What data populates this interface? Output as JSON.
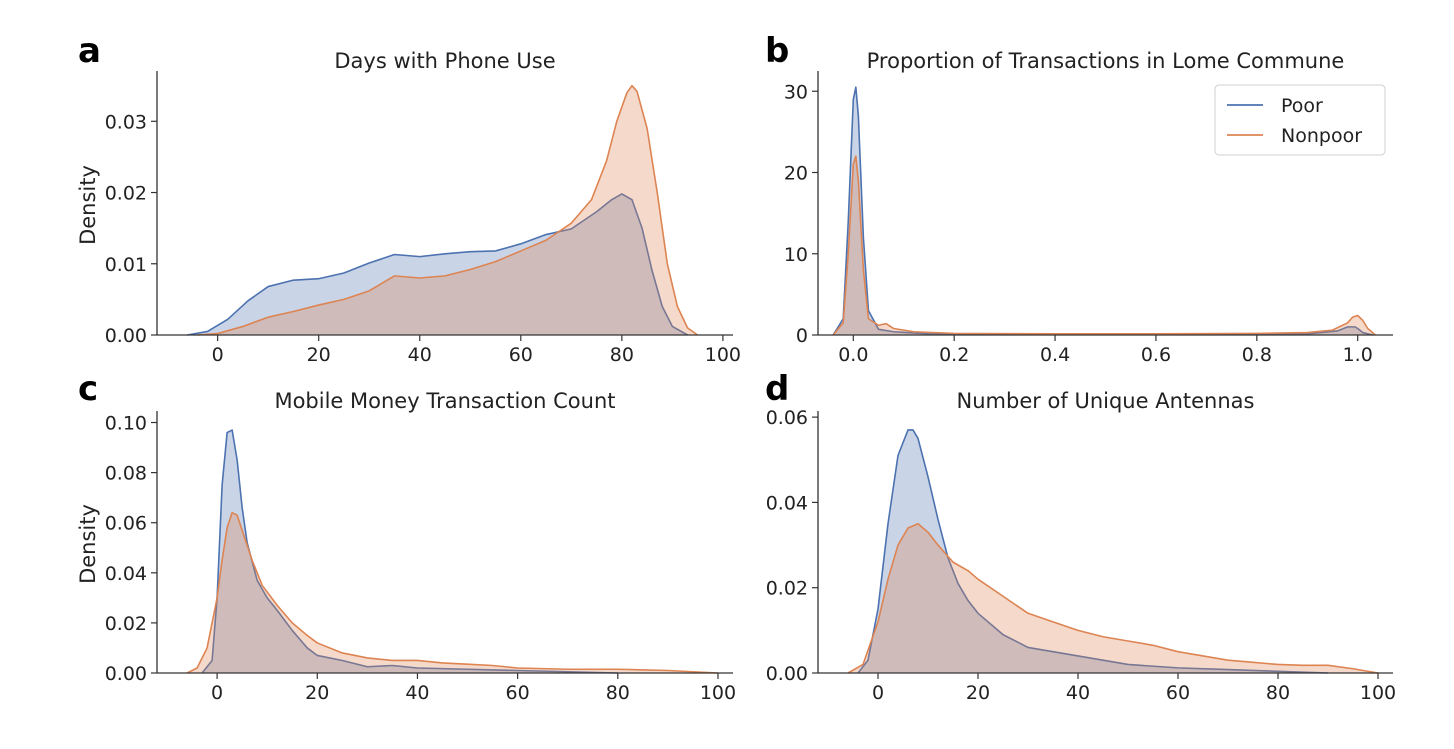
{
  "colors": {
    "poor": "#4c72b0",
    "nonpoor": "#dd8452"
  },
  "chart_data": [
    {
      "panel": "a",
      "type": "area",
      "title": "Days with Phone Use",
      "xlabel": "",
      "ylabel": "Density",
      "xlim": [
        -12,
        102
      ],
      "ylim": [
        0,
        0.0365
      ],
      "xticks": [
        0,
        20,
        40,
        60,
        80,
        100
      ],
      "yticks": [
        0.0,
        0.01,
        0.02,
        0.03
      ],
      "xtick_labels": [
        "0",
        "20",
        "40",
        "60",
        "80",
        "100"
      ],
      "ytick_labels": [
        "0.00",
        "0.01",
        "0.02",
        "0.03"
      ],
      "series": [
        {
          "name": "Poor",
          "x": [
            -6,
            -2,
            2,
            6,
            10,
            15,
            20,
            25,
            30,
            35,
            40,
            45,
            50,
            55,
            60,
            65,
            70,
            75,
            78,
            80,
            82,
            84,
            86,
            88,
            90,
            93
          ],
          "y": [
            0,
            0.0005,
            0.0022,
            0.0048,
            0.0068,
            0.0077,
            0.0079,
            0.0087,
            0.0101,
            0.0113,
            0.011,
            0.0114,
            0.0117,
            0.0118,
            0.0128,
            0.0141,
            0.0149,
            0.0173,
            0.019,
            0.0198,
            0.019,
            0.015,
            0.009,
            0.004,
            0.0012,
            0
          ]
        },
        {
          "name": "Nonpoor",
          "x": [
            -4,
            0,
            5,
            10,
            15,
            20,
            25,
            30,
            35,
            40,
            45,
            50,
            55,
            60,
            65,
            70,
            74,
            77,
            79,
            81,
            82,
            83,
            85,
            87,
            89,
            91,
            93,
            95
          ],
          "y": [
            0,
            0.0002,
            0.0012,
            0.0025,
            0.0033,
            0.0042,
            0.005,
            0.0062,
            0.0083,
            0.008,
            0.0083,
            0.0092,
            0.0103,
            0.0118,
            0.0133,
            0.0157,
            0.019,
            0.0245,
            0.03,
            0.034,
            0.035,
            0.0342,
            0.029,
            0.02,
            0.01,
            0.004,
            0.001,
            0
          ]
        }
      ]
    },
    {
      "panel": "b",
      "type": "area",
      "title": "Proportion of Transactions in Lome Commune",
      "xlabel": "",
      "ylabel": "",
      "xlim": [
        -0.07,
        1.07
      ],
      "ylim": [
        0,
        32
      ],
      "xticks": [
        0.0,
        0.2,
        0.4,
        0.6,
        0.8,
        1.0
      ],
      "yticks": [
        0,
        10,
        20,
        30
      ],
      "xtick_labels": [
        "0.0",
        "0.2",
        "0.4",
        "0.6",
        "0.8",
        "1.0"
      ],
      "ytick_labels": [
        "0",
        "10",
        "20",
        "30"
      ],
      "legend": {
        "placement": "top-right",
        "entries": [
          "Poor",
          "Nonpoor"
        ]
      },
      "series": [
        {
          "name": "Poor",
          "x": [
            -0.04,
            -0.02,
            -0.01,
            0.0,
            0.005,
            0.01,
            0.02,
            0.03,
            0.05,
            0.08,
            0.15,
            0.3,
            0.5,
            0.7,
            0.9,
            0.96,
            0.98,
            0.995,
            1.0,
            1.01,
            1.03
          ],
          "y": [
            0,
            2,
            14,
            29,
            30.5,
            27,
            12,
            3,
            0.7,
            0.4,
            0.15,
            0.1,
            0.1,
            0.1,
            0.15,
            0.5,
            1.0,
            1.0,
            0.8,
            0.3,
            0
          ]
        },
        {
          "name": "Nonpoor",
          "x": [
            -0.04,
            -0.02,
            -0.01,
            0.0,
            0.005,
            0.01,
            0.02,
            0.03,
            0.05,
            0.065,
            0.08,
            0.12,
            0.2,
            0.4,
            0.6,
            0.8,
            0.9,
            0.95,
            0.98,
            0.99,
            1.0,
            1.01,
            1.02,
            1.035
          ],
          "y": [
            0,
            1.5,
            10,
            21,
            22,
            19,
            8,
            2,
            1.2,
            1.4,
            0.8,
            0.4,
            0.2,
            0.15,
            0.15,
            0.2,
            0.3,
            0.6,
            1.5,
            2.2,
            2.4,
            1.8,
            0.8,
            0
          ]
        }
      ]
    },
    {
      "panel": "c",
      "type": "area",
      "title": "Mobile Money Transaction Count",
      "xlabel": "",
      "ylabel": "Density",
      "xlim": [
        -12,
        103
      ],
      "ylim": [
        0,
        0.103
      ],
      "xticks": [
        0,
        20,
        40,
        60,
        80,
        100
      ],
      "yticks": [
        0.0,
        0.02,
        0.04,
        0.06,
        0.08,
        0.1
      ],
      "xtick_labels": [
        "0",
        "20",
        "40",
        "60",
        "80",
        "100"
      ],
      "ytick_labels": [
        "0.00",
        "0.02",
        "0.04",
        "0.06",
        "0.08",
        "0.10"
      ],
      "series": [
        {
          "name": "Poor",
          "x": [
            -3,
            -1,
            0,
            1,
            2,
            3,
            4,
            5,
            6,
            8,
            10,
            12,
            15,
            18,
            20,
            25,
            30,
            35,
            40,
            50,
            60,
            70,
            80
          ],
          "y": [
            0,
            0.005,
            0.03,
            0.075,
            0.096,
            0.097,
            0.085,
            0.066,
            0.052,
            0.037,
            0.03,
            0.025,
            0.017,
            0.01,
            0.007,
            0.005,
            0.0025,
            0.003,
            0.002,
            0.0015,
            0.001,
            0.0005,
            0
          ]
        },
        {
          "name": "Nonpoor",
          "x": [
            -6,
            -4,
            -2,
            0,
            1,
            2,
            3,
            4,
            5,
            7,
            9,
            12,
            15,
            18,
            20,
            25,
            30,
            35,
            40,
            45,
            50,
            55,
            60,
            70,
            80,
            90,
            100
          ],
          "y": [
            0,
            0.002,
            0.01,
            0.03,
            0.045,
            0.058,
            0.064,
            0.063,
            0.057,
            0.045,
            0.035,
            0.027,
            0.02,
            0.015,
            0.012,
            0.008,
            0.006,
            0.005,
            0.005,
            0.004,
            0.0035,
            0.003,
            0.002,
            0.0015,
            0.0015,
            0.001,
            0
          ]
        }
      ]
    },
    {
      "panel": "d",
      "type": "area",
      "title": "Number of Unique Antennas",
      "xlabel": "",
      "ylabel": "",
      "xlim": [
        -12,
        103
      ],
      "ylim": [
        0,
        0.0605
      ],
      "xticks": [
        0,
        20,
        40,
        60,
        80,
        100
      ],
      "yticks": [
        0.0,
        0.02,
        0.04,
        0.06
      ],
      "xtick_labels": [
        "0",
        "20",
        "40",
        "60",
        "80",
        "100"
      ],
      "ytick_labels": [
        "0.00",
        "0.02",
        "0.04",
        "0.06"
      ],
      "series": [
        {
          "name": "Poor",
          "x": [
            -4,
            -2,
            0,
            2,
            4,
            6,
            7,
            8,
            10,
            12,
            14,
            16,
            18,
            20,
            25,
            30,
            35,
            40,
            50,
            60,
            70,
            80,
            90
          ],
          "y": [
            0,
            0.003,
            0.015,
            0.035,
            0.051,
            0.057,
            0.057,
            0.055,
            0.046,
            0.036,
            0.027,
            0.021,
            0.017,
            0.014,
            0.009,
            0.006,
            0.005,
            0.004,
            0.002,
            0.0012,
            0.0008,
            0.0004,
            0
          ]
        },
        {
          "name": "Nonpoor",
          "x": [
            -6,
            -3,
            0,
            2,
            4,
            6,
            8,
            10,
            12,
            15,
            18,
            20,
            25,
            30,
            35,
            40,
            45,
            50,
            55,
            60,
            65,
            70,
            75,
            80,
            85,
            90,
            95,
            100
          ],
          "y": [
            0,
            0.002,
            0.012,
            0.022,
            0.03,
            0.034,
            0.035,
            0.033,
            0.03,
            0.026,
            0.024,
            0.022,
            0.018,
            0.014,
            0.012,
            0.01,
            0.0085,
            0.0075,
            0.0065,
            0.005,
            0.004,
            0.003,
            0.0025,
            0.002,
            0.0018,
            0.0018,
            0.001,
            0
          ]
        }
      ]
    }
  ]
}
